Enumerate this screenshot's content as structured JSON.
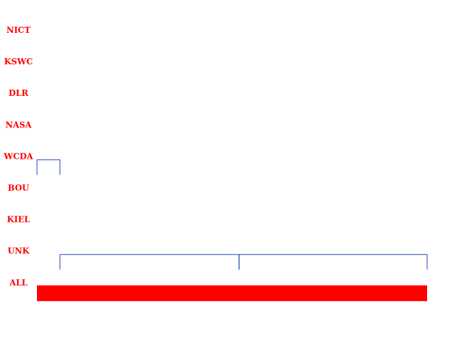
{
  "chart_data": {
    "type": "timeline",
    "title": "",
    "xlabel": "",
    "ylabel": "",
    "xlim": [
      0,
      100
    ],
    "rows": [
      "NICT",
      "KSWC",
      "DLR",
      "NASA",
      "WCDA",
      "BOU",
      "KIEL",
      "UNK",
      "ALL"
    ],
    "label_color": "#ff0000",
    "series": [
      {
        "row": "WCDA",
        "color": "#2040c0",
        "style": "bracket",
        "segments": [
          {
            "start": 0.0,
            "end": 5.9
          }
        ]
      },
      {
        "row": "UNK",
        "color": "#2040c0",
        "style": "bracket",
        "segments": [
          {
            "start": 5.9,
            "end": 51.8
          },
          {
            "start": 51.8,
            "end": 100.0
          }
        ]
      },
      {
        "row": "ALL",
        "color": "#ff0000",
        "style": "bar",
        "segments": [
          {
            "start": 0.0,
            "end": 34.3
          },
          {
            "start": 34.3,
            "end": 100.0
          }
        ]
      }
    ]
  }
}
